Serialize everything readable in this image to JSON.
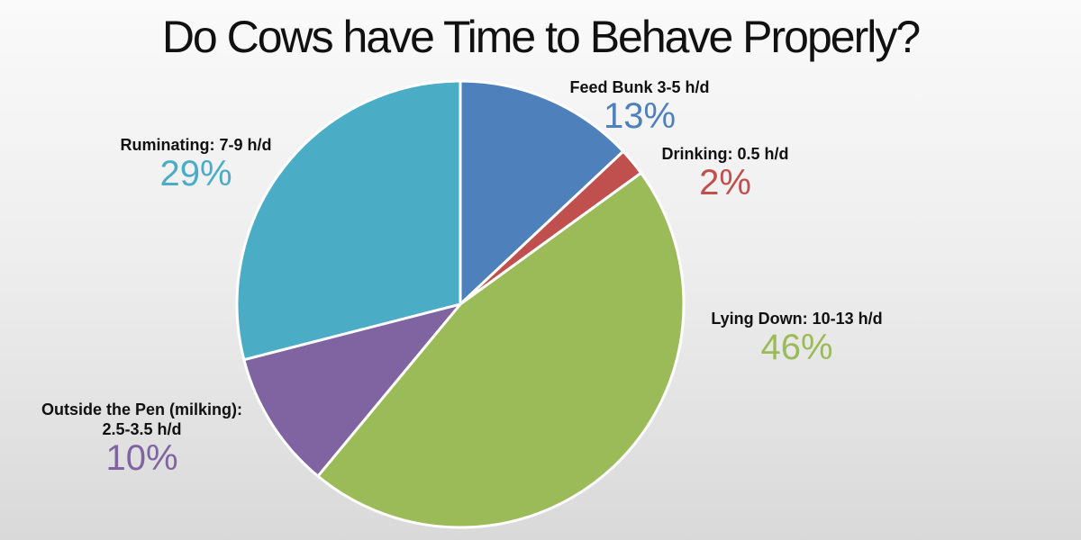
{
  "title": "Do Cows have Time to Behave Properly?",
  "chart_data": {
    "type": "pie",
    "title": "Do Cows have Time to Behave Properly?",
    "categories": [
      "Feed Bunk",
      "Drinking",
      "Lying Down",
      "Outside the Pen (milking)",
      "Ruminating"
    ],
    "values": [
      13,
      2,
      46,
      10,
      29
    ],
    "units": "%",
    "slices": [
      {
        "label": "Feed Bunk 3-5 h/d",
        "hours": "3-5 h/d",
        "value": 13,
        "pct_label": "13%",
        "color": "#4e80bb"
      },
      {
        "label": "Drinking: 0.5 h/d",
        "hours": "0.5 h/d",
        "value": 2,
        "pct_label": "2%",
        "color": "#c0504d"
      },
      {
        "label": "Lying Down: 10-13 h/d",
        "hours": "10-13 h/d",
        "value": 46,
        "pct_label": "46%",
        "color": "#9bbb59"
      },
      {
        "label": "Outside the Pen (milking): 2.5-3.5 h/d",
        "hours": "2.5-3.5 h/d",
        "value": 10,
        "pct_label": "10%",
        "color": "#8064a2"
      },
      {
        "label": "Ruminating: 7-9 h/d",
        "hours": "7-9 h/d",
        "value": 29,
        "pct_label": "29%",
        "color": "#4bacc6"
      }
    ],
    "start_angle": "12 o'clock, clockwise",
    "legend": "none (data labels)"
  },
  "labels": {
    "feed": {
      "name": "Feed Bunk 3-5 h/d",
      "pct": "13%"
    },
    "drink": {
      "name": "Drinking: 0.5 h/d",
      "pct": "2%"
    },
    "lying": {
      "name": "Lying Down: 10-13 h/d",
      "pct": "46%"
    },
    "outside1": {
      "name": "Outside the Pen (milking):",
      "name2": "2.5-3.5 h/d",
      "pct": "10%"
    },
    "rum": {
      "name": "Ruminating: 7-9 h/d",
      "pct": "29%"
    }
  }
}
